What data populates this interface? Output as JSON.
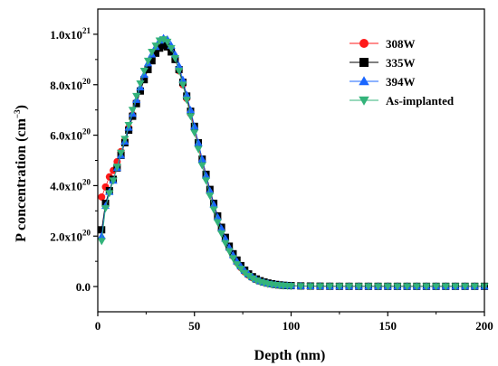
{
  "chart_data": {
    "type": "scatter",
    "xlabel": "Depth (nm)",
    "ylabel_main": "P concentration (cm",
    "ylabel_sup": "−3",
    "ylabel_close": ")",
    "xlim": [
      0,
      200
    ],
    "ylim": [
      -1e+20,
      1.1e+21
    ],
    "x_ticks": [
      0,
      50,
      100,
      150,
      200
    ],
    "x_tick_labels": [
      "0",
      "50",
      "100",
      "150",
      "200"
    ],
    "y_ticks": [
      0,
      2e+20,
      4e+20,
      6e+20,
      8e+20,
      1e+21
    ],
    "y_tick_labels": [
      {
        "base": "0.0",
        "exp": ""
      },
      {
        "base": "2.0x10",
        "exp": "20"
      },
      {
        "base": "4.0x10",
        "exp": "20"
      },
      {
        "base": "6.0x10",
        "exp": "20"
      },
      {
        "base": "8.0x10",
        "exp": "20"
      },
      {
        "base": "1.0x10",
        "exp": "21"
      }
    ],
    "legend_position": "top-right",
    "series": [
      {
        "name": "308W",
        "color": "#ff1a1a",
        "marker": "circle",
        "x": [
          2,
          4,
          6,
          8,
          10,
          12,
          14,
          16,
          18,
          20,
          22,
          24,
          26,
          28,
          30,
          32,
          34,
          36,
          38,
          40,
          42,
          44,
          46,
          48,
          50,
          52,
          54,
          56,
          58,
          60,
          62,
          64,
          66,
          68,
          70,
          72,
          74,
          76,
          78,
          80,
          82,
          84,
          86,
          88,
          90,
          92,
          94,
          96,
          98,
          100,
          105,
          110,
          115,
          120,
          125,
          130,
          135,
          140,
          145,
          150,
          155,
          160,
          165,
          170,
          175,
          180,
          185,
          190,
          195,
          200
        ],
        "y": [
          3.55e+20,
          3.95e+20,
          4.35e+20,
          4.6e+20,
          4.95e+20,
          5.35e+20,
          5.8e+20,
          6.3e+20,
          6.8e+20,
          7.3e+20,
          7.8e+20,
          8.25e+20,
          8.7e+20,
          9e+20,
          9.3e+20,
          9.5e+20,
          9.6e+20,
          9.55e+20,
          9.35e+20,
          9e+20,
          8.55e+20,
          8e+20,
          7.45e+20,
          6.85e+20,
          6.25e+20,
          5.6e+20,
          4.95e+20,
          4.35e+20,
          3.75e+20,
          3.2e+20,
          2.7e+20,
          2.25e+20,
          1.85e+20,
          1.5e+20,
          1.2e+20,
          9.5e+19,
          7.5e+19,
          5.8e+19,
          4.5e+19,
          3.5e+19,
          2.7e+19,
          2.1e+19,
          1.6e+19,
          1.2e+19,
          9e+18,
          7e+18,
          5.5e+18,
          4.5e+18,
          3.5e+18,
          3e+18,
          2e+18,
          1.5e+18,
          1.2e+18,
          1e+18,
          1e+18,
          1e+18,
          1e+18,
          1e+18,
          1e+18,
          1e+18,
          1e+18,
          1e+18,
          1e+18,
          1e+18,
          1e+18,
          1e+18,
          1e+18,
          1e+18,
          1e+18,
          1e+18
        ]
      },
      {
        "name": "335W",
        "color": "#000000",
        "marker": "square",
        "x": [
          2,
          4,
          6,
          8,
          10,
          12,
          14,
          16,
          18,
          20,
          22,
          24,
          26,
          28,
          30,
          32,
          34,
          36,
          38,
          40,
          42,
          44,
          46,
          48,
          50,
          52,
          54,
          56,
          58,
          60,
          62,
          64,
          66,
          68,
          70,
          72,
          74,
          76,
          78,
          80,
          82,
          84,
          86,
          88,
          90,
          92,
          94,
          96,
          98,
          100,
          105,
          110,
          115,
          120,
          125,
          130,
          135,
          140,
          145,
          150,
          155,
          160,
          165,
          170,
          175,
          180,
          185,
          190,
          195,
          200
        ],
        "y": [
          2.25e+20,
          3.3e+20,
          3.8e+20,
          4.25e+20,
          4.7e+20,
          5.2e+20,
          5.7e+20,
          6.2e+20,
          6.75e+20,
          7.25e+20,
          7.75e+20,
          8.2e+20,
          8.6e+20,
          8.95e+20,
          9.25e+20,
          9.45e+20,
          9.55e+20,
          9.5e+20,
          9.3e+20,
          9e+20,
          8.6e+20,
          8.1e+20,
          7.55e+20,
          6.95e+20,
          6.35e+20,
          5.7e+20,
          5.05e+20,
          4.45e+20,
          3.85e+20,
          3.3e+20,
          2.8e+20,
          2.35e+20,
          1.95e+20,
          1.6e+20,
          1.3e+20,
          1.05e+20,
          8.3e+19,
          6.5e+19,
          5e+19,
          3.9e+19,
          3e+19,
          2.3e+19,
          1.8e+19,
          1.4e+19,
          1.1e+19,
          8.5e+18,
          6.5e+18,
          5e+18,
          4e+18,
          3.5e+18,
          2.5e+18,
          2e+18,
          1.5e+18,
          1.2e+18,
          1e+18,
          1e+18,
          1e+18,
          1e+18,
          1e+18,
          1e+18,
          1e+18,
          1e+18,
          1e+18,
          1e+18,
          1e+18,
          1e+18,
          1e+18,
          1e+18,
          1e+18,
          1e+18
        ]
      },
      {
        "name": "394W",
        "color": "#1a66ff",
        "marker": "triangle",
        "x": [
          2,
          4,
          6,
          8,
          10,
          12,
          14,
          16,
          18,
          20,
          22,
          24,
          26,
          28,
          30,
          32,
          34,
          36,
          38,
          40,
          42,
          44,
          46,
          48,
          50,
          52,
          54,
          56,
          58,
          60,
          62,
          64,
          66,
          68,
          70,
          72,
          74,
          76,
          78,
          80,
          82,
          84,
          86,
          88,
          90,
          92,
          94,
          96,
          98,
          100,
          105,
          110,
          115,
          120,
          125,
          130,
          135,
          140,
          145,
          150,
          155,
          160,
          165,
          170,
          175,
          180,
          185,
          190,
          195,
          200
        ],
        "y": [
          2e+20,
          3.2e+20,
          3.75e+20,
          4.2e+20,
          4.7e+20,
          5.2e+20,
          5.75e+20,
          6.3e+20,
          6.85e+20,
          7.4e+20,
          7.9e+20,
          8.4e+20,
          8.85e+20,
          9.2e+20,
          9.5e+20,
          9.75e+20,
          9.85e+20,
          9.8e+20,
          9.55e+20,
          9.2e+20,
          8.75e+20,
          8.2e+20,
          7.6e+20,
          7e+20,
          6.35e+20,
          5.7e+20,
          5.05e+20,
          4.4e+20,
          3.8e+20,
          3.25e+20,
          2.75e+20,
          2.3e+20,
          1.9e+20,
          1.55e+20,
          1.25e+20,
          1e+20,
          8e+19,
          6.3e+19,
          4.9e+19,
          3.8e+19,
          2.9e+19,
          2.2e+19,
          1.7e+19,
          1.3e+19,
          1e+19,
          8e+18,
          6e+18,
          4.8e+18,
          3.8e+18,
          3.2e+18,
          2.2e+18,
          1.6e+18,
          1.2e+18,
          1e+18,
          1e+18,
          1e+18,
          1e+18,
          1e+18,
          1e+18,
          1e+18,
          1e+18,
          1e+18,
          1e+18,
          1e+18,
          1e+18,
          1e+18,
          1e+18,
          1e+18,
          1e+18,
          1e+18
        ]
      },
      {
        "name": "As-implanted",
        "color": "#33b37a",
        "marker": "triangle-down",
        "x": [
          2,
          4,
          6,
          8,
          10,
          12,
          14,
          16,
          18,
          20,
          22,
          24,
          26,
          28,
          30,
          32,
          34,
          36,
          38,
          40,
          42,
          44,
          46,
          48,
          50,
          52,
          54,
          56,
          58,
          60,
          62,
          64,
          66,
          68,
          70,
          72,
          74,
          76,
          78,
          80,
          82,
          84,
          86,
          88,
          90,
          92,
          94,
          96,
          98,
          100,
          105,
          110,
          115,
          120,
          125,
          130,
          135,
          140,
          145,
          150,
          155,
          160,
          165,
          170,
          175,
          180,
          185,
          190,
          195,
          200
        ],
        "y": [
          1.8e+20,
          3.1e+20,
          3.7e+20,
          4.2e+20,
          4.75e+20,
          5.3e+20,
          5.85e+20,
          6.4e+20,
          7e+20,
          7.55e+20,
          8.05e+20,
          8.55e+20,
          8.95e+20,
          9.3e+20,
          9.55e+20,
          9.75e+20,
          9.8e+20,
          9.7e+20,
          9.45e+20,
          9.05e+20,
          8.55e+20,
          8e+20,
          7.4e+20,
          6.75e+20,
          6.1e+20,
          5.45e+20,
          4.8e+20,
          4.2e+20,
          3.6e+20,
          3.05e+20,
          2.55e+20,
          2.1e+20,
          1.72e+20,
          1.4e+20,
          1.12e+20,
          8.8e+19,
          7e+19,
          5.4e+19,
          4.2e+19,
          3.2e+19,
          2.4e+19,
          1.8e+19,
          1.4e+19,
          1e+19,
          8e+18,
          6e+18,
          4.5e+18,
          3.5e+18,
          2.8e+18,
          2.2e+18,
          1.5e+18,
          1.2e+18,
          1e+18,
          1e+18,
          1e+18,
          1e+18,
          1e+18,
          1e+18,
          1e+18,
          1e+18,
          1e+18,
          1e+18,
          1e+18,
          1e+18,
          1e+18,
          1e+18,
          1e+18,
          1e+18,
          1e+18,
          1e+18
        ]
      }
    ]
  }
}
